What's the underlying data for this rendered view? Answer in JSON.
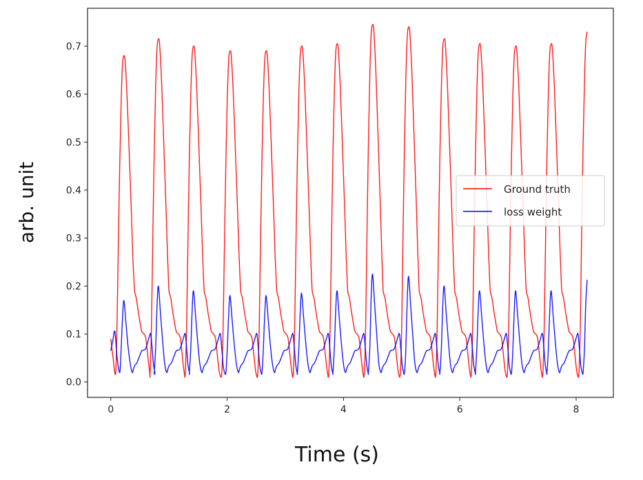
{
  "chart_data": {
    "type": "line",
    "title": "",
    "xlabel": "Time (s)",
    "ylabel": "arb. unit",
    "xlim": [
      -0.4,
      8.64
    ],
    "ylim": [
      -0.032,
      0.779
    ],
    "xticks": [
      0,
      2,
      4,
      6,
      8
    ],
    "xtick_labels": [
      "0",
      "2",
      "4",
      "6",
      "8"
    ],
    "yticks": [
      0.0,
      0.1,
      0.2,
      0.3,
      0.4,
      0.5,
      0.6,
      0.7
    ],
    "ytick_labels": [
      "0.0",
      "0.1",
      "0.2",
      "0.3",
      "0.4",
      "0.5",
      "0.6",
      "0.7"
    ],
    "grid": false,
    "legend_position": "center-right",
    "series": [
      {
        "name": "Ground truth",
        "color": "#ff0000",
        "start_points": [
          [
            0,
            0.09
          ],
          [
            0.04,
            0.05
          ]
        ],
        "beat_peaks": [
          0.68,
          0.715,
          0.7,
          0.69,
          0.69,
          0.7,
          0.705,
          0.745,
          0.74,
          0.715,
          0.705,
          0.7,
          0.705,
          0.73
        ],
        "beat_template": [
          [
            -0.142,
            0.018
          ],
          [
            -0.118,
            0.12
          ],
          [
            -0.095,
            0.3
          ],
          [
            -0.071,
            0.47
          ],
          [
            -0.047,
            0.6
          ],
          [
            -0.024,
            0.68
          ],
          [
            0,
            0.7
          ],
          [
            0.024,
            0.685
          ],
          [
            0.059,
            0.6
          ],
          [
            0.095,
            0.48
          ],
          [
            0.13,
            0.36
          ],
          [
            0.154,
            0.27
          ],
          [
            0.178,
            0.2
          ],
          [
            0.19,
            0.185
          ],
          [
            0.213,
            0.175
          ],
          [
            0.249,
            0.145
          ],
          [
            0.284,
            0.12
          ],
          [
            0.308,
            0.105
          ],
          [
            0.344,
            0.1
          ],
          [
            0.379,
            0.09
          ],
          [
            0.415,
            0.05
          ],
          [
            0.444,
            0.02
          ]
        ],
        "template_peak": 0.7,
        "scale_window": [
          -0.1,
          0.16
        ]
      },
      {
        "name": "loss weight",
        "color": "#0000ff",
        "start_points": [
          [
            0,
            0.065
          ],
          [
            0.04,
            0.09
          ],
          [
            0.07,
            0.105
          ],
          [
            0.11,
            0.05
          ]
        ],
        "beat_peaks": [
          0.17,
          0.2,
          0.19,
          0.18,
          0.18,
          0.185,
          0.19,
          0.225,
          0.22,
          0.2,
          0.19,
          0.19,
          0.19,
          0.213
        ],
        "beat_template": [
          [
            -0.071,
            0.02
          ],
          [
            -0.047,
            0.07
          ],
          [
            -0.024,
            0.14
          ],
          [
            0,
            0.18
          ],
          [
            0.036,
            0.13
          ],
          [
            0.071,
            0.08
          ],
          [
            0.107,
            0.04
          ],
          [
            0.142,
            0.02
          ],
          [
            0.166,
            0.028
          ],
          [
            0.19,
            0.035
          ],
          [
            0.225,
            0.04
          ],
          [
            0.273,
            0.055
          ],
          [
            0.308,
            0.065
          ],
          [
            0.367,
            0.068
          ],
          [
            0.403,
            0.08
          ],
          [
            0.438,
            0.095
          ],
          [
            0.462,
            0.1
          ],
          [
            0.486,
            0.07
          ],
          [
            0.51,
            0.035
          ],
          [
            0.533,
            0.02
          ]
        ],
        "template_peak": 0.18,
        "scale_window": [
          -0.03,
          0.08
        ]
      }
    ],
    "beat_times": [
      0.225,
      0.818,
      1.422,
      2.05,
      2.67,
      3.28,
      3.89,
      4.5,
      5.12,
      5.73,
      6.34,
      6.96,
      7.57,
      8.19
    ],
    "x_end": 8.19
  }
}
